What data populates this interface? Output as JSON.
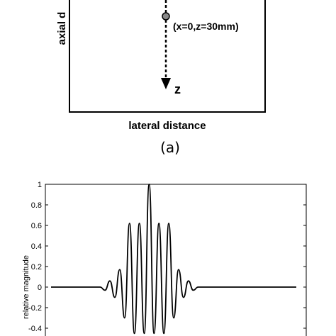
{
  "panel_a": {
    "ylabel": "axial d",
    "point_label": "(x=0,z=30mm)",
    "arrow_label": "z",
    "xlabel": "lateral distance",
    "caption": "(a)"
  },
  "chart_data": {
    "type": "line",
    "ylabel": "relative magnitude",
    "yticks": [
      "1",
      "0.8",
      "0.6",
      "0.4",
      "0.2",
      "0",
      "-0.2",
      "-0.4"
    ],
    "ylim": [
      -0.45,
      1
    ],
    "grid": false,
    "series": [
      {
        "x": [
          0,
          0.04,
          0.08,
          0.12,
          0.16,
          0.2,
          0.24,
          0.28,
          0.32,
          0.36,
          0.4,
          0.44,
          0.48,
          0.52,
          0.56,
          0.6,
          0.64,
          0.68,
          0.72,
          0.76,
          0.8,
          0.84,
          0.88,
          0.92,
          0.96,
          1.0,
          1.04,
          1.08,
          1.12,
          1.16,
          1.2,
          1.24,
          1.28,
          1.32,
          1.36,
          1.4,
          1.44,
          1.48,
          1.52,
          1.56,
          1.6,
          1.64,
          1.68,
          1.72,
          1.76,
          1.8,
          1.84,
          1.88,
          1.92,
          1.96,
          2.0
        ],
        "values": [
          0,
          0,
          0,
          0,
          0,
          0,
          0,
          0,
          0,
          0,
          0,
          -0.03,
          0.06,
          -0.1,
          0.17,
          -0.3,
          0.62,
          -0.45,
          0.62,
          -0.45,
          1.0,
          -0.45,
          0.62,
          -0.45,
          0.62,
          -0.3,
          0.17,
          -0.1,
          0.06,
          -0.03,
          0,
          0,
          0,
          0,
          0,
          0,
          0,
          0,
          0,
          0,
          0,
          0,
          0,
          0,
          0,
          0,
          0,
          0,
          0,
          0,
          0
        ]
      }
    ]
  }
}
